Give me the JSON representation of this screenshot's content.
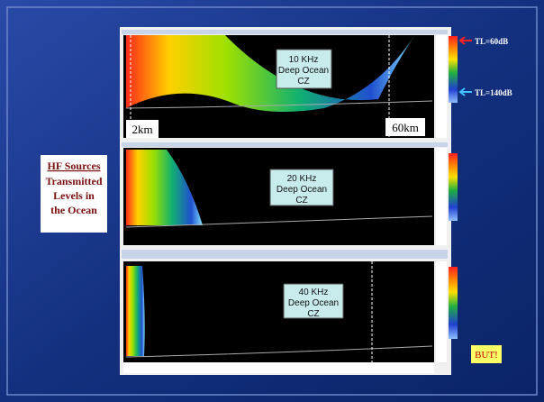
{
  "sidebar": {
    "title": "HF Sources",
    "lines": [
      "Transmitted",
      "Levels in",
      "the Ocean"
    ]
  },
  "panels": [
    {
      "label": [
        "10 KHz",
        "Deep Ocean",
        "CZ"
      ]
    },
    {
      "label": [
        "20 KHz",
        "Deep Ocean",
        "CZ"
      ]
    },
    {
      "label": [
        "40 KHz",
        "Deep Ocean",
        "CZ"
      ]
    }
  ],
  "annotations": {
    "range_start": "2km",
    "range_end": "60km",
    "tl_high": "TL=60dB",
    "tl_low": "TL=140dB",
    "but": "BUT!"
  }
}
